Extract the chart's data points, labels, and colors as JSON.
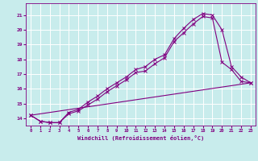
{
  "xlabel": "Windchill (Refroidissement éolien,°C)",
  "background_color": "#c8ecec",
  "line_color": "#800080",
  "grid_color": "#ffffff",
  "xlim": [
    -0.5,
    23.5
  ],
  "ylim": [
    13.5,
    21.8
  ],
  "xticks": [
    0,
    1,
    2,
    3,
    4,
    5,
    6,
    7,
    8,
    9,
    10,
    11,
    12,
    13,
    14,
    15,
    16,
    17,
    18,
    19,
    20,
    21,
    22,
    23
  ],
  "yticks": [
    14,
    15,
    16,
    17,
    18,
    19,
    20,
    21
  ],
  "series": [
    {
      "x": [
        0,
        1,
        2,
        3,
        4,
        5,
        6,
        7,
        8,
        9,
        10,
        11,
        12,
        13,
        14,
        15,
        16,
        17,
        18,
        19,
        20,
        21,
        22,
        23
      ],
      "y": [
        14.2,
        13.8,
        13.7,
        13.7,
        14.4,
        14.6,
        15.1,
        15.5,
        16.0,
        16.4,
        16.8,
        17.3,
        17.5,
        18.0,
        18.3,
        19.4,
        20.1,
        20.7,
        21.1,
        21.0,
        20.0,
        17.5,
        16.8,
        16.4
      ]
    },
    {
      "x": [
        0,
        1,
        2,
        3,
        4,
        5,
        6,
        7,
        8,
        9,
        10,
        11,
        12,
        13,
        14,
        15,
        16,
        17,
        18,
        19,
        20,
        21,
        22,
        23
      ],
      "y": [
        14.2,
        13.8,
        13.7,
        13.7,
        14.3,
        14.5,
        14.9,
        15.3,
        15.8,
        16.2,
        16.6,
        17.1,
        17.2,
        17.7,
        18.1,
        19.2,
        19.8,
        20.4,
        20.9,
        20.8,
        17.8,
        17.3,
        16.5,
        16.4
      ]
    },
    {
      "x": [
        0,
        23
      ],
      "y": [
        14.2,
        16.4
      ]
    }
  ]
}
